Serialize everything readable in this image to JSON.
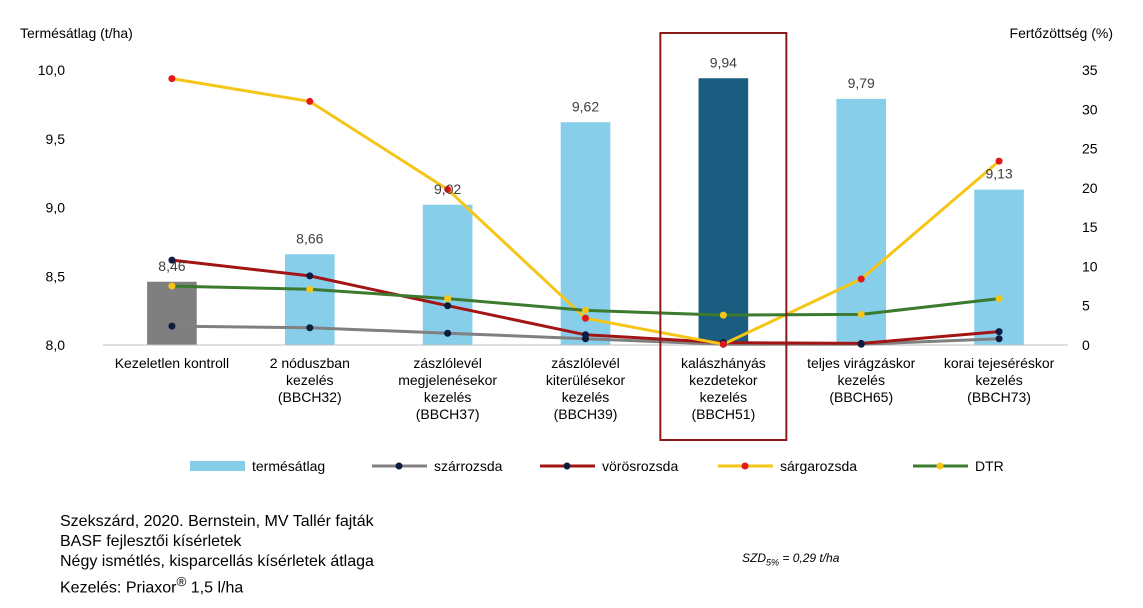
{
  "colors": {
    "bar": "#87CEEB",
    "bar_control": "#7F7F7F",
    "bar_highlight": "#1A5D80",
    "highlight_box": "#8B1A1A",
    "szarrozsda": "#808080",
    "vorosrozsda": "#A31515",
    "sargarozsda": "#F5C518",
    "dtr": "#3C7A2E",
    "dot_dark": "#0D1B3E",
    "dot_red": "#E01818",
    "dot_yellow": "#F5C518"
  },
  "chart_data": {
    "type": "bar",
    "ylabel_left": "Termésátlag (t/ha)",
    "ylabel_right": "Fertőzöttség (%)",
    "ylim_left": [
      8.0,
      10.0
    ],
    "yticks_left": [
      "8,0",
      "8,5",
      "9,0",
      "9,5",
      "10,0"
    ],
    "ylim_right": [
      0,
      35
    ],
    "yticks_right": [
      "0",
      "5",
      "10",
      "15",
      "20",
      "25",
      "30",
      "35"
    ],
    "categories": [
      [
        "Kezeletlen kontroll"
      ],
      [
        "2 nóduszban",
        "kezelés",
        "(BBCH32)"
      ],
      [
        "zászlólevél",
        "megjelenésekor",
        "kezelés",
        "(BBCH37)"
      ],
      [
        "zászlólevél",
        "kiterülésekor",
        "kezelés",
        "(BBCH39)"
      ],
      [
        "kalászhányás",
        "kezdetekor",
        "kezelés",
        "(BBCH51)"
      ],
      [
        "teljes virágzáskor",
        "kezelés",
        "(BBCH65)"
      ],
      [
        "korai tejeséréskor",
        "kezelés",
        "(BBCH73)"
      ]
    ],
    "bars": {
      "name": "termésátlag",
      "values": [
        8.46,
        8.66,
        9.02,
        9.62,
        9.94,
        9.79,
        9.13
      ],
      "labels": [
        "8,46",
        "8,66",
        "9,02",
        "9,62",
        "9,94",
        "9,79",
        "9,13"
      ]
    },
    "lines": [
      {
        "name": "szárrozsda",
        "values": [
          2.4,
          2.2,
          1.5,
          0.8,
          0.1,
          0.1,
          0.8
        ]
      },
      {
        "name": "vörösrozsda",
        "values": [
          10.8,
          8.8,
          5.0,
          1.3,
          0.3,
          0.2,
          1.7
        ]
      },
      {
        "name": "sárgarozsda",
        "values": [
          33.9,
          31.0,
          19.8,
          3.4,
          0.1,
          8.4,
          23.4
        ]
      },
      {
        "name": "DTR",
        "values": [
          7.5,
          7.1,
          5.9,
          4.4,
          3.8,
          3.9,
          5.9
        ]
      }
    ],
    "highlight_index": 4,
    "legend_position": "bottom",
    "grid": false
  },
  "notes": [
    "Szekszárd, 2020. Bernstein, MV Tallér fajták",
    "BASF fejlesztői kísérletek",
    "Négy ismétlés, kisparcellás kísérletek átlaga"
  ],
  "note_last": {
    "prefix": "Kezelés: Priaxor",
    "sup": "®",
    "suffix": " 1,5 l/ha"
  },
  "szd": {
    "prefix": "SZD",
    "sub": "5%",
    "suffix": " = 0,29 t/ha"
  }
}
